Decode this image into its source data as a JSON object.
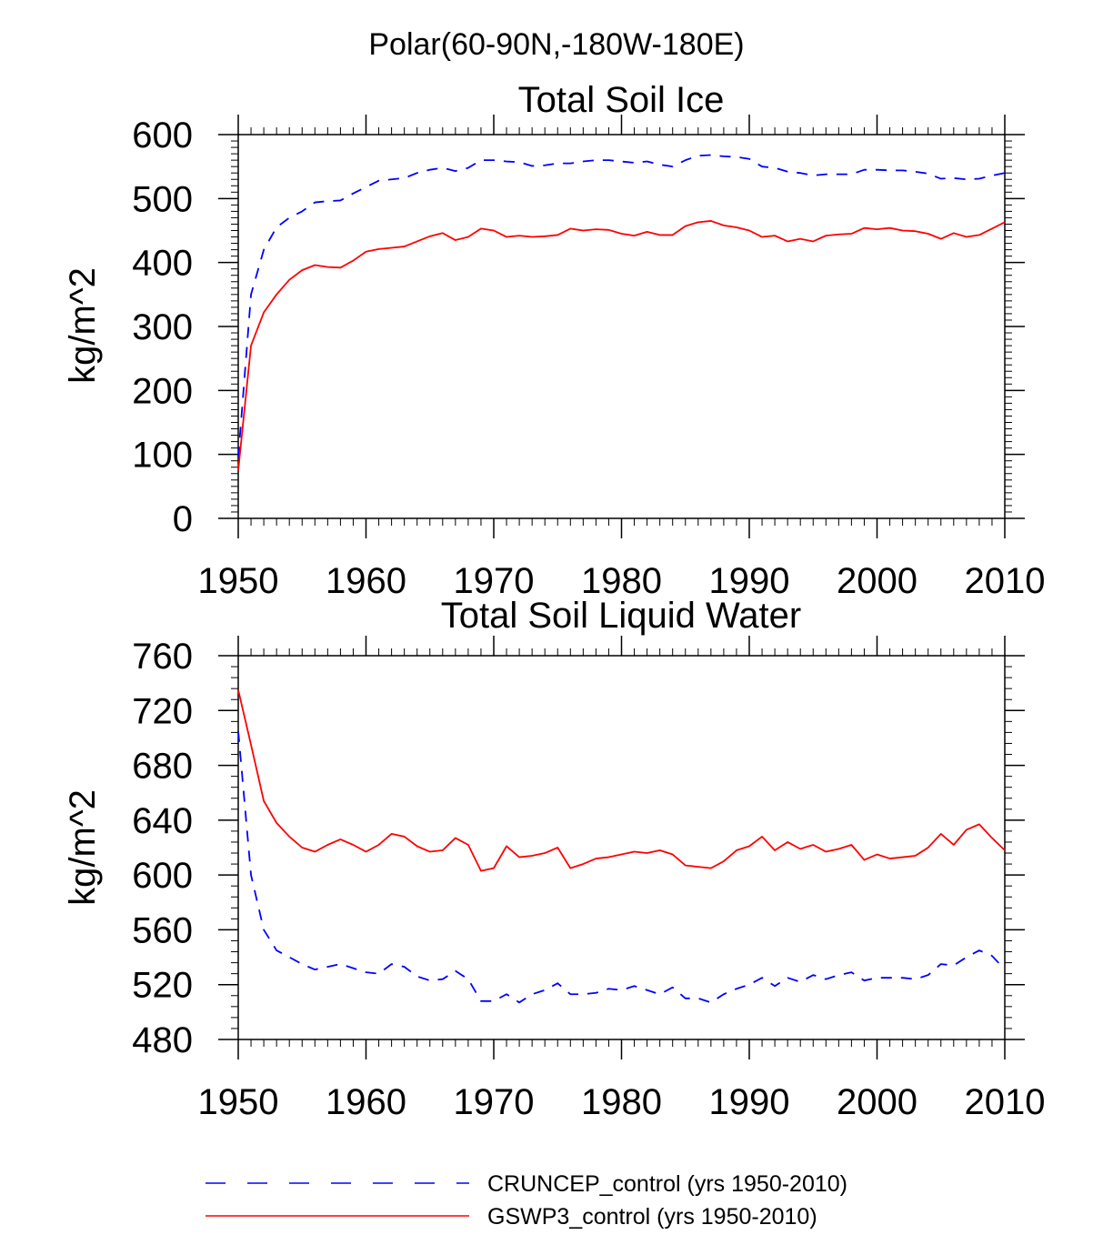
{
  "figure": {
    "title": "Polar(60-90N,-180W-180E)"
  },
  "colors": {
    "cruncep": "#0000ff",
    "gswp3": "#ff0000",
    "axes": "#000000"
  },
  "legend": {
    "placement": "bottom",
    "items": [
      {
        "label": "CRUNCEP_control (yrs 1950-2010)",
        "color": "#0000ff",
        "style": "dashed"
      },
      {
        "label": "GSWP3_control (yrs 1950-2010)",
        "color": "#ff0000",
        "style": "solid"
      }
    ]
  },
  "chart_data": [
    {
      "type": "line",
      "title": "Total Soil Ice",
      "ylabel": "kg/m^2",
      "xlabel": "",
      "xlim": [
        1950,
        2010
      ],
      "ylim": [
        0,
        600
      ],
      "xticks": [
        1950,
        1960,
        1970,
        1980,
        1990,
        2000,
        2010
      ],
      "yticks": [
        0,
        100,
        200,
        300,
        400,
        500,
        600
      ],
      "x": [
        1950,
        1951,
        1952,
        1953,
        1954,
        1955,
        1956,
        1957,
        1958,
        1959,
        1960,
        1961,
        1962,
        1963,
        1964,
        1965,
        1966,
        1967,
        1968,
        1969,
        1970,
        1971,
        1972,
        1973,
        1974,
        1975,
        1976,
        1977,
        1978,
        1979,
        1980,
        1981,
        1982,
        1983,
        1984,
        1985,
        1986,
        1987,
        1988,
        1989,
        1990,
        1991,
        1992,
        1993,
        1994,
        1995,
        1996,
        1997,
        1998,
        1999,
        2000,
        2001,
        2002,
        2003,
        2004,
        2005,
        2006,
        2007,
        2008,
        2009,
        2010
      ],
      "series": [
        {
          "name": "CRUNCEP_control (yrs 1950-2010)",
          "style": "dashed",
          "values": [
            95,
            350,
            420,
            455,
            470,
            480,
            494,
            496,
            497,
            508,
            518,
            528,
            530,
            532,
            540,
            545,
            548,
            543,
            548,
            560,
            560,
            558,
            557,
            551,
            552,
            555,
            555,
            558,
            560,
            560,
            558,
            556,
            558,
            553,
            550,
            560,
            567,
            568,
            566,
            565,
            562,
            550,
            548,
            542,
            540,
            536,
            538,
            538,
            538,
            545,
            545,
            544,
            544,
            542,
            539,
            531,
            532,
            530,
            531,
            536,
            540
          ]
        },
        {
          "name": "GSWP3_control (yrs 1950-2010)",
          "style": "solid",
          "values": [
            75,
            270,
            322,
            350,
            373,
            388,
            396,
            393,
            392,
            403,
            417,
            421,
            423,
            425,
            433,
            441,
            446,
            435,
            440,
            453,
            450,
            440,
            442,
            440,
            441,
            443,
            453,
            450,
            452,
            451,
            445,
            442,
            448,
            443,
            443,
            457,
            463,
            465,
            458,
            455,
            450,
            440,
            442,
            433,
            437,
            433,
            442,
            444,
            445,
            454,
            452,
            454,
            450,
            449,
            445,
            437,
            446,
            440,
            443,
            453,
            463
          ]
        }
      ]
    },
    {
      "type": "line",
      "title": "Total Soil Liquid Water",
      "ylabel": "kg/m^2",
      "xlabel": "",
      "xlim": [
        1950,
        2010
      ],
      "ylim": [
        480,
        760
      ],
      "xticks": [
        1950,
        1960,
        1970,
        1980,
        1990,
        2000,
        2010
      ],
      "yticks": [
        480,
        520,
        560,
        600,
        640,
        680,
        720,
        760
      ],
      "x": [
        1950,
        1951,
        1952,
        1953,
        1954,
        1955,
        1956,
        1957,
        1958,
        1959,
        1960,
        1961,
        1962,
        1963,
        1964,
        1965,
        1966,
        1967,
        1968,
        1969,
        1970,
        1971,
        1972,
        1973,
        1974,
        1975,
        1976,
        1977,
        1978,
        1979,
        1980,
        1981,
        1982,
        1983,
        1984,
        1985,
        1986,
        1987,
        1988,
        1989,
        1990,
        1991,
        1992,
        1993,
        1994,
        1995,
        1996,
        1997,
        1998,
        1999,
        2000,
        2001,
        2002,
        2003,
        2004,
        2005,
        2006,
        2007,
        2008,
        2009,
        2010
      ],
      "series": [
        {
          "name": "CRUNCEP_control (yrs 1950-2010)",
          "style": "dashed",
          "values": [
            705,
            600,
            560,
            545,
            540,
            535,
            531,
            533,
            535,
            532,
            529,
            528,
            535,
            533,
            526,
            523,
            524,
            530,
            524,
            508,
            508,
            513,
            507,
            513,
            516,
            521,
            513,
            513,
            514,
            517,
            516,
            519,
            516,
            513,
            518,
            510,
            510,
            507,
            513,
            517,
            520,
            525,
            519,
            525,
            522,
            527,
            524,
            527,
            529,
            523,
            525,
            525,
            525,
            524,
            527,
            535,
            534,
            540,
            545,
            541,
            531
          ]
        },
        {
          "name": "GSWP3_control (yrs 1950-2010)",
          "style": "solid",
          "values": [
            735,
            695,
            654,
            638,
            628,
            620,
            617,
            622,
            626,
            622,
            617,
            622,
            630,
            628,
            621,
            617,
            618,
            627,
            622,
            603,
            605,
            621,
            613,
            614,
            616,
            620,
            605,
            608,
            612,
            613,
            615,
            617,
            616,
            618,
            615,
            607,
            606,
            605,
            610,
            618,
            621,
            628,
            618,
            624,
            619,
            622,
            617,
            619,
            622,
            611,
            615,
            612,
            613,
            614,
            620,
            630,
            622,
            633,
            637,
            627,
            618
          ]
        }
      ]
    }
  ]
}
